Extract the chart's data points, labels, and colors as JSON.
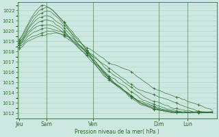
{
  "xlabel": "Pression niveau de la mer( hPa )",
  "bg_color": "#cce8e0",
  "grid_color": "#aacccc",
  "line_color": "#2d6e2d",
  "ylim": [
    1011.5,
    1022.8
  ],
  "yticks": [
    1012,
    1013,
    1014,
    1015,
    1016,
    1017,
    1018,
    1019,
    1020,
    1021,
    1022
  ],
  "xtick_positions": [
    0.0,
    0.14,
    0.38,
    0.72,
    0.87
  ],
  "xtick_labels": [
    "Jeu",
    "Sam",
    "Ven",
    "Dim",
    "Lun"
  ],
  "vlines": [
    0.14,
    0.38,
    0.72,
    0.87
  ],
  "series": [
    [
      1018.3,
      1018.5,
      1018.8,
      1019.0,
      1019.2,
      1019.3,
      1019.4,
      1019.5,
      1019.6,
      1019.6,
      1019.7,
      1019.7,
      1019.8,
      1019.8,
      1019.8,
      1019.7,
      1019.6,
      1019.5,
      1019.4,
      1019.3,
      1019.1,
      1019.0,
      1018.8,
      1018.6,
      1018.4,
      1018.3,
      1018.1,
      1017.9,
      1017.7,
      1017.5,
      1017.3,
      1017.1,
      1016.9,
      1016.8,
      1016.7,
      1016.6,
      1016.5,
      1016.4,
      1016.3,
      1016.2,
      1016.0,
      1015.8,
      1015.6,
      1015.4,
      1015.2,
      1015.0,
      1014.8,
      1014.6,
      1014.4,
      1014.3,
      1014.2,
      1014.1,
      1014.0,
      1013.9,
      1013.8,
      1013.7,
      1013.6,
      1013.5,
      1013.4,
      1013.3,
      1013.2,
      1013.1,
      1013.0,
      1012.9,
      1012.8,
      1012.7,
      1012.6,
      1012.5,
      1012.4,
      1012.3
    ],
    [
      1018.5,
      1018.7,
      1019.0,
      1019.2,
      1019.4,
      1019.5,
      1019.6,
      1019.7,
      1019.8,
      1019.9,
      1020.0,
      1020.0,
      1020.0,
      1019.9,
      1019.8,
      1019.7,
      1019.5,
      1019.3,
      1019.1,
      1018.9,
      1018.7,
      1018.6,
      1018.4,
      1018.2,
      1018.0,
      1017.8,
      1017.6,
      1017.4,
      1017.2,
      1017.0,
      1016.8,
      1016.6,
      1016.4,
      1016.2,
      1016.0,
      1015.8,
      1015.6,
      1015.4,
      1015.2,
      1015.0,
      1014.8,
      1014.6,
      1014.4,
      1014.3,
      1014.2,
      1014.1,
      1014.0,
      1013.9,
      1013.8,
      1013.7,
      1013.6,
      1013.5,
      1013.4,
      1013.3,
      1013.2,
      1013.1,
      1013.0,
      1012.9,
      1012.8,
      1012.7,
      1012.6,
      1012.5,
      1012.4,
      1012.3,
      1012.25,
      1012.2,
      1012.15,
      1012.1,
      1012.1,
      1012.1
    ],
    [
      1018.6,
      1018.9,
      1019.2,
      1019.5,
      1019.7,
      1019.9,
      1020.0,
      1020.1,
      1020.2,
      1020.3,
      1020.3,
      1020.3,
      1020.2,
      1020.1,
      1020.0,
      1019.9,
      1019.7,
      1019.5,
      1019.3,
      1019.1,
      1018.9,
      1018.7,
      1018.5,
      1018.3,
      1018.1,
      1017.9,
      1017.7,
      1017.5,
      1017.2,
      1016.9,
      1016.6,
      1016.3,
      1016.1,
      1015.9,
      1015.7,
      1015.5,
      1015.3,
      1015.1,
      1014.9,
      1014.7,
      1014.5,
      1014.3,
      1014.1,
      1013.9,
      1013.7,
      1013.5,
      1013.4,
      1013.3,
      1013.2,
      1013.1,
      1013.0,
      1012.9,
      1012.8,
      1012.7,
      1012.6,
      1012.5,
      1012.45,
      1012.4,
      1012.35,
      1012.3,
      1012.25,
      1012.2,
      1012.15,
      1012.1,
      1012.1,
      1012.1,
      1012.1,
      1012.1,
      1012.1,
      1012.1
    ],
    [
      1018.7,
      1019.0,
      1019.4,
      1019.7,
      1020.0,
      1020.2,
      1020.4,
      1020.5,
      1020.6,
      1020.6,
      1020.6,
      1020.6,
      1020.5,
      1020.4,
      1020.2,
      1020.0,
      1019.8,
      1019.6,
      1019.3,
      1019.0,
      1018.7,
      1018.4,
      1018.1,
      1017.9,
      1017.7,
      1017.5,
      1017.3,
      1017.1,
      1016.8,
      1016.5,
      1016.2,
      1015.9,
      1015.7,
      1015.5,
      1015.3,
      1015.1,
      1014.9,
      1014.7,
      1014.5,
      1014.3,
      1014.1,
      1013.9,
      1013.7,
      1013.5,
      1013.3,
      1013.2,
      1013.1,
      1013.0,
      1012.9,
      1012.8,
      1012.7,
      1012.6,
      1012.5,
      1012.4,
      1012.35,
      1012.3,
      1012.25,
      1012.2,
      1012.15,
      1012.1,
      1012.1,
      1012.1,
      1012.1,
      1012.1,
      1012.1,
      1012.1,
      1012.1,
      1012.1,
      1012.1,
      1012.1
    ],
    [
      1018.8,
      1019.1,
      1019.5,
      1019.9,
      1020.2,
      1020.5,
      1020.7,
      1020.9,
      1021.0,
      1021.1,
      1021.1,
      1021.0,
      1020.9,
      1020.7,
      1020.5,
      1020.3,
      1020.0,
      1019.7,
      1019.4,
      1019.1,
      1018.8,
      1018.5,
      1018.2,
      1017.9,
      1017.6,
      1017.3,
      1017.0,
      1016.7,
      1016.4,
      1016.1,
      1015.8,
      1015.5,
      1015.2,
      1015.0,
      1014.8,
      1014.6,
      1014.4,
      1014.2,
      1014.0,
      1013.8,
      1013.6,
      1013.4,
      1013.2,
      1013.0,
      1012.9,
      1012.8,
      1012.7,
      1012.6,
      1012.5,
      1012.4,
      1012.35,
      1012.3,
      1012.25,
      1012.2,
      1012.15,
      1012.1,
      1012.1,
      1012.1,
      1012.1,
      1012.1,
      1012.1,
      1012.1,
      1012.1,
      1012.1,
      1012.1,
      1012.1,
      1012.1,
      1012.1,
      1012.1,
      1012.1
    ],
    [
      1018.9,
      1019.2,
      1019.6,
      1020.1,
      1020.5,
      1020.8,
      1021.1,
      1021.3,
      1021.4,
      1021.5,
      1021.5,
      1021.4,
      1021.2,
      1021.0,
      1020.8,
      1020.6,
      1020.3,
      1020.0,
      1019.7,
      1019.4,
      1019.0,
      1018.7,
      1018.4,
      1018.1,
      1017.8,
      1017.5,
      1017.2,
      1016.9,
      1016.6,
      1016.3,
      1016.0,
      1015.7,
      1015.4,
      1015.1,
      1014.9,
      1014.7,
      1014.5,
      1014.3,
      1014.1,
      1013.9,
      1013.7,
      1013.5,
      1013.3,
      1013.2,
      1013.1,
      1013.0,
      1012.9,
      1012.8,
      1012.7,
      1012.6,
      1012.5,
      1012.4,
      1012.35,
      1012.3,
      1012.25,
      1012.2,
      1012.15,
      1012.1,
      1012.1,
      1012.1,
      1012.1,
      1012.1,
      1012.1,
      1012.1,
      1012.1,
      1012.1,
      1012.1,
      1012.1,
      1012.1,
      1012.1
    ],
    [
      1019.0,
      1019.3,
      1019.8,
      1020.3,
      1020.7,
      1021.1,
      1021.4,
      1021.6,
      1021.8,
      1021.9,
      1022.0,
      1021.9,
      1021.7,
      1021.5,
      1021.2,
      1020.9,
      1020.6,
      1020.3,
      1020.0,
      1019.7,
      1019.4,
      1019.1,
      1018.8,
      1018.5,
      1018.2,
      1017.9,
      1017.5,
      1017.1,
      1016.7,
      1016.4,
      1016.1,
      1015.8,
      1015.5,
      1015.2,
      1014.9,
      1014.7,
      1014.5,
      1014.3,
      1014.1,
      1013.9,
      1013.7,
      1013.5,
      1013.3,
      1013.1,
      1013.0,
      1012.9,
      1012.8,
      1012.7,
      1012.6,
      1012.5,
      1012.4,
      1012.35,
      1012.3,
      1012.25,
      1012.2,
      1012.15,
      1012.1,
      1012.1,
      1012.1,
      1012.1,
      1012.1,
      1012.1,
      1012.1,
      1012.1,
      1012.1,
      1012.1,
      1012.1,
      1012.1,
      1012.1,
      1012.1
    ],
    [
      1019.1,
      1019.5,
      1020.0,
      1020.5,
      1021.0,
      1021.4,
      1021.7,
      1022.0,
      1022.2,
      1022.3,
      1022.3,
      1022.2,
      1022.0,
      1021.8,
      1021.5,
      1021.2,
      1020.8,
      1020.4,
      1020.0,
      1019.6,
      1019.2,
      1018.8,
      1018.5,
      1018.2,
      1017.9,
      1017.6,
      1017.2,
      1016.8,
      1016.4,
      1016.0,
      1015.7,
      1015.5,
      1015.3,
      1015.1,
      1014.9,
      1014.7,
      1014.5,
      1014.3,
      1014.1,
      1013.9,
      1013.7,
      1013.5,
      1013.3,
      1013.1,
      1012.9,
      1012.8,
      1012.7,
      1012.6,
      1012.5,
      1012.4,
      1012.35,
      1012.3,
      1012.25,
      1012.2,
      1012.15,
      1012.1,
      1012.1,
      1012.1,
      1012.1,
      1012.1,
      1012.1,
      1012.1,
      1012.1,
      1012.1,
      1012.1,
      1012.1,
      1012.1,
      1012.1,
      1012.1,
      1012.1
    ],
    [
      1019.2,
      1019.6,
      1020.2,
      1020.7,
      1021.2,
      1021.6,
      1022.0,
      1022.3,
      1022.5,
      1022.5,
      1022.4,
      1022.2,
      1022.0,
      1021.7,
      1021.4,
      1021.1,
      1020.8,
      1020.5,
      1020.2,
      1019.9,
      1019.6,
      1019.3,
      1018.9,
      1018.5,
      1018.1,
      1017.7,
      1017.3,
      1016.9,
      1016.6,
      1016.3,
      1016.0,
      1015.7,
      1015.4,
      1015.2,
      1015.0,
      1014.8,
      1014.6,
      1014.3,
      1014.0,
      1013.7,
      1013.5,
      1013.3,
      1013.1,
      1012.9,
      1012.8,
      1012.7,
      1012.6,
      1012.5,
      1012.4,
      1012.35,
      1012.3,
      1012.25,
      1012.2,
      1012.15,
      1012.1,
      1012.1,
      1012.1,
      1012.1,
      1012.1,
      1012.1,
      1012.1,
      1012.1,
      1012.1,
      1012.1,
      1012.1,
      1012.1,
      1012.1,
      1012.1,
      1012.1,
      1012.1
    ]
  ]
}
